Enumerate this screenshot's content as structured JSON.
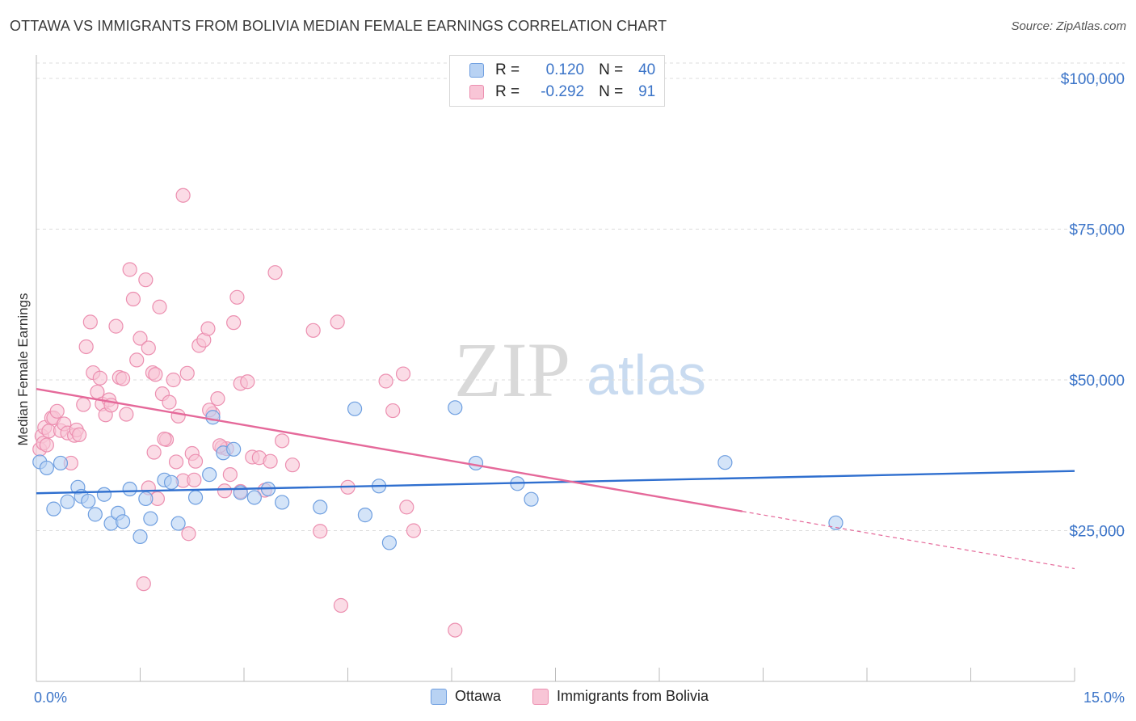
{
  "title": "OTTAWA VS IMMIGRANTS FROM BOLIVIA MEDIAN FEMALE EARNINGS CORRELATION CHART",
  "source": "Source: ZipAtlas.com",
  "watermark": {
    "zip": "ZIP",
    "atlas": "atlas"
  },
  "legend": {
    "ottawa": {
      "r_label": "R =",
      "r_value": "0.120",
      "n_label": "N =",
      "n_value": "40"
    },
    "bolivia": {
      "r_label": "R =",
      "r_value": "-0.292",
      "n_label": "N =",
      "n_value": "91"
    }
  },
  "bottom_legend": {
    "ottawa": "Ottawa",
    "bolivia": "Immigrants from Bolivia"
  },
  "colors": {
    "ottawa_fill": "#b8d2f3",
    "ottawa_stroke": "#6f9fe0",
    "ottawa_line": "#2f6fcf",
    "bolivia_fill": "#f8c5d6",
    "bolivia_stroke": "#ec8fb0",
    "bolivia_line": "#e5699a",
    "axis_label": "#3b74c8",
    "grid": "#dcdcdc"
  },
  "chart_data": {
    "type": "scatter",
    "title": "OTTAWA VS IMMIGRANTS FROM BOLIVIA MEDIAN FEMALE EARNINGS CORRELATION CHART",
    "xlabel": "",
    "ylabel": "Median Female Earnings",
    "xlim": [
      0,
      15
    ],
    "ylim": [
      0,
      105000
    ],
    "x_tick_labels": [
      {
        "value": 0,
        "label": "0.0%"
      },
      {
        "value": 15,
        "label": "15.0%"
      }
    ],
    "y_tick_labels": [
      {
        "value": 25000,
        "label": "$25,000"
      },
      {
        "value": 50000,
        "label": "$50,000"
      },
      {
        "value": 75000,
        "label": "$75,000"
      },
      {
        "value": 100000,
        "label": "$100,000"
      }
    ],
    "series": [
      {
        "name": "Ottawa",
        "points": [
          [
            0.05,
            36400
          ],
          [
            0.15,
            35400
          ],
          [
            0.25,
            28600
          ],
          [
            0.35,
            36200
          ],
          [
            0.45,
            29800
          ],
          [
            0.6,
            32200
          ],
          [
            0.65,
            30700
          ],
          [
            0.75,
            29900
          ],
          [
            0.85,
            27700
          ],
          [
            0.98,
            31000
          ],
          [
            1.08,
            26200
          ],
          [
            1.18,
            27900
          ],
          [
            1.25,
            26500
          ],
          [
            1.35,
            31900
          ],
          [
            1.5,
            24000
          ],
          [
            1.58,
            30300
          ],
          [
            1.65,
            27000
          ],
          [
            1.85,
            33400
          ],
          [
            1.95,
            33000
          ],
          [
            2.05,
            26200
          ],
          [
            2.3,
            30500
          ],
          [
            2.5,
            34300
          ],
          [
            2.55,
            43800
          ],
          [
            2.7,
            37900
          ],
          [
            2.85,
            38500
          ],
          [
            2.95,
            31300
          ],
          [
            3.15,
            30500
          ],
          [
            3.35,
            31900
          ],
          [
            3.55,
            29700
          ],
          [
            4.1,
            28900
          ],
          [
            4.6,
            45200
          ],
          [
            4.75,
            27600
          ],
          [
            4.95,
            32400
          ],
          [
            5.1,
            23000
          ],
          [
            6.05,
            45400
          ],
          [
            6.35,
            36200
          ],
          [
            6.95,
            32800
          ],
          [
            7.15,
            30200
          ],
          [
            9.95,
            36300
          ],
          [
            11.55,
            26300
          ]
        ],
        "trend": {
          "x": [
            0,
            15
          ],
          "y": [
            31200,
            34900
          ]
        }
      },
      {
        "name": "Immigrants from Bolivia",
        "points": [
          [
            0.05,
            38500
          ],
          [
            0.08,
            40700
          ],
          [
            0.1,
            39500
          ],
          [
            0.12,
            42100
          ],
          [
            0.15,
            39200
          ],
          [
            0.18,
            41500
          ],
          [
            0.22,
            43700
          ],
          [
            0.25,
            43700
          ],
          [
            0.3,
            44800
          ],
          [
            0.35,
            41600
          ],
          [
            0.4,
            42700
          ],
          [
            0.45,
            41200
          ],
          [
            0.5,
            36200
          ],
          [
            0.55,
            40800
          ],
          [
            0.58,
            41700
          ],
          [
            0.62,
            40900
          ],
          [
            0.68,
            45900
          ],
          [
            0.72,
            55500
          ],
          [
            0.78,
            59600
          ],
          [
            0.82,
            51200
          ],
          [
            0.88,
            48000
          ],
          [
            0.92,
            50300
          ],
          [
            0.95,
            46000
          ],
          [
            1.0,
            44200
          ],
          [
            1.05,
            46700
          ],
          [
            1.08,
            45800
          ],
          [
            1.15,
            58900
          ],
          [
            1.2,
            50400
          ],
          [
            1.25,
            50200
          ],
          [
            1.3,
            44300
          ],
          [
            1.35,
            68300
          ],
          [
            1.4,
            63400
          ],
          [
            1.45,
            53300
          ],
          [
            1.5,
            56900
          ],
          [
            1.58,
            66600
          ],
          [
            1.62,
            55300
          ],
          [
            1.68,
            51200
          ],
          [
            1.72,
            50900
          ],
          [
            1.78,
            62100
          ],
          [
            1.82,
            47700
          ],
          [
            1.88,
            40100
          ],
          [
            1.92,
            46300
          ],
          [
            1.98,
            50000
          ],
          [
            2.05,
            44000
          ],
          [
            2.12,
            80600
          ],
          [
            2.18,
            51100
          ],
          [
            2.25,
            37800
          ],
          [
            2.3,
            36500
          ],
          [
            2.35,
            55700
          ],
          [
            2.42,
            56600
          ],
          [
            2.48,
            58500
          ],
          [
            2.55,
            44400
          ],
          [
            2.62,
            46900
          ],
          [
            2.68,
            38800
          ],
          [
            2.75,
            38600
          ],
          [
            2.8,
            34300
          ],
          [
            2.85,
            59500
          ],
          [
            2.9,
            63700
          ],
          [
            2.95,
            49400
          ],
          [
            3.05,
            49700
          ],
          [
            3.12,
            37200
          ],
          [
            3.22,
            37100
          ],
          [
            3.3,
            31700
          ],
          [
            3.38,
            36500
          ],
          [
            3.45,
            67800
          ],
          [
            3.55,
            39900
          ],
          [
            3.7,
            35900
          ],
          [
            4.0,
            58200
          ],
          [
            4.1,
            24900
          ],
          [
            4.35,
            59600
          ],
          [
            4.4,
            12600
          ],
          [
            4.5,
            32200
          ],
          [
            5.05,
            49800
          ],
          [
            5.15,
            44900
          ],
          [
            5.3,
            51000
          ],
          [
            5.35,
            28900
          ],
          [
            5.45,
            25000
          ],
          [
            6.05,
            8500
          ],
          [
            1.55,
            16200
          ],
          [
            1.62,
            32100
          ],
          [
            1.7,
            38000
          ],
          [
            1.75,
            30300
          ],
          [
            1.85,
            40200
          ],
          [
            2.02,
            36400
          ],
          [
            2.12,
            33300
          ],
          [
            2.2,
            24500
          ],
          [
            2.28,
            33400
          ],
          [
            2.5,
            45000
          ],
          [
            2.65,
            39100
          ],
          [
            2.72,
            31600
          ],
          [
            2.95,
            31500
          ]
        ],
        "trend": {
          "x": [
            0,
            10.2
          ],
          "y": [
            48500,
            28200
          ]
        },
        "trend_dashed": {
          "x": [
            10.2,
            15
          ],
          "y": [
            28200,
            18700
          ]
        }
      }
    ]
  }
}
